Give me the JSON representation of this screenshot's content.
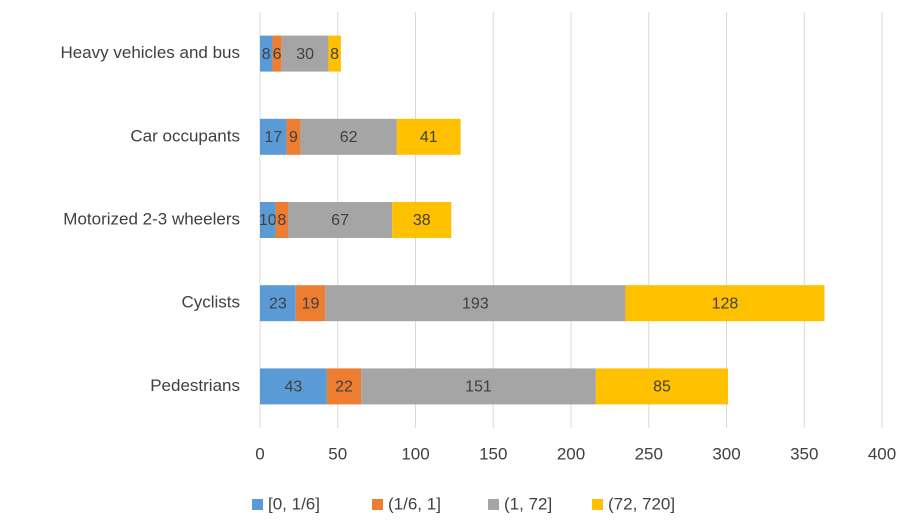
{
  "chart_data": {
    "type": "stacked_barh",
    "categories": [
      "Heavy vehicles and bus",
      "Car occupants",
      "Motorized 2-3 wheelers",
      "Cyclists",
      "Pedestrians"
    ],
    "series": [
      {
        "name": "[0, 1/6]",
        "color": "#5b9bd5",
        "values": [
          8,
          17,
          10,
          23,
          43
        ]
      },
      {
        "name": "(1/6, 1]",
        "color": "#ed7d31",
        "values": [
          6,
          9,
          8,
          19,
          22
        ]
      },
      {
        "name": "(1, 72]",
        "color": "#a5a5a5",
        "values": [
          30,
          62,
          67,
          193,
          151
        ]
      },
      {
        "name": "(72, 720]",
        "color": "#ffc000",
        "values": [
          8,
          41,
          38,
          128,
          85
        ]
      }
    ],
    "xlim": [
      0,
      400
    ],
    "xticks": [
      0,
      50,
      100,
      150,
      200,
      250,
      300,
      350,
      400
    ],
    "grid": true,
    "legend": "bottom"
  }
}
